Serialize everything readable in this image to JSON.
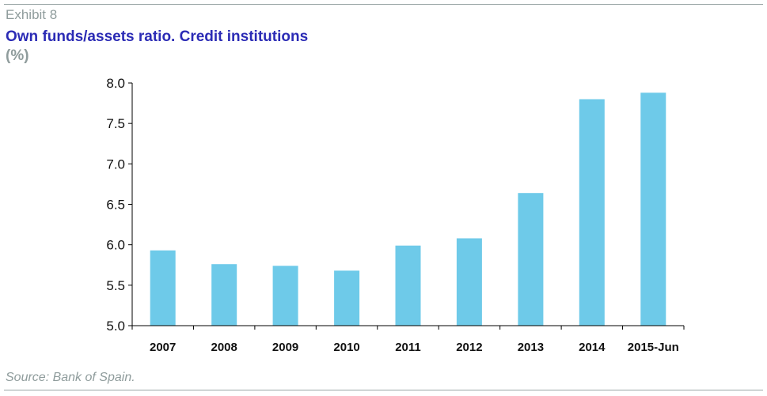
{
  "header": {
    "exhibit": "Exhibit 8",
    "title": "Own funds/assets ratio. Credit institutions",
    "unit": "(%)"
  },
  "footer": {
    "source": "Source: Bank of Spain."
  },
  "colors": {
    "bar": "#6ecae9",
    "axis": "#000000",
    "title": "#2b2bb5",
    "muted": "#8f9c9c"
  },
  "chart_data": {
    "type": "bar",
    "title": "Own funds/assets ratio. Credit institutions",
    "ylabel": "(%)",
    "xlabel": "",
    "categories": [
      "2007",
      "2008",
      "2009",
      "2010",
      "2011",
      "2012",
      "2013",
      "2014",
      "2015-Jun"
    ],
    "values": [
      5.93,
      5.76,
      5.74,
      5.68,
      5.99,
      6.08,
      6.64,
      7.8,
      7.88
    ],
    "ylim": [
      5.0,
      8.0
    ],
    "yticks": [
      "5.0",
      "5.5",
      "6.0",
      "6.5",
      "7.0",
      "7.5",
      "8.0"
    ],
    "grid": false,
    "legend": "none"
  }
}
